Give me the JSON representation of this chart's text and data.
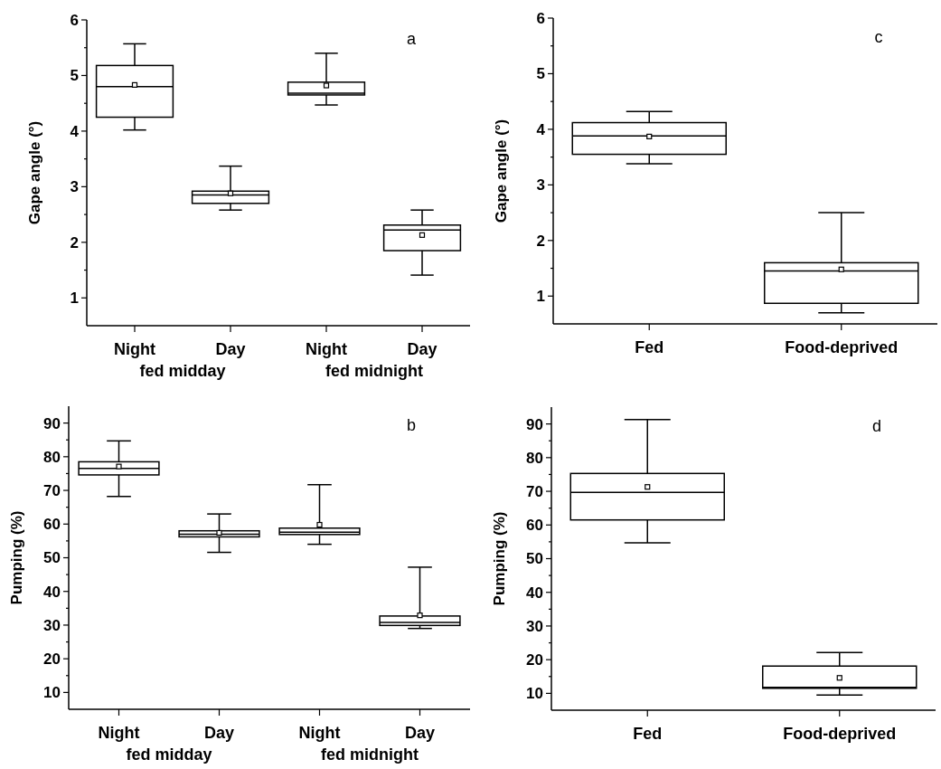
{
  "chart_data": [
    {
      "type": "box",
      "ylabel": "Gape angle (°)",
      "annotations": [
        "a",
        "fed midday",
        "fed midnight"
      ],
      "categories": [
        "Night",
        "Day",
        "Night",
        "Day"
      ],
      "ylim": [
        0.5,
        6
      ],
      "yticks": [
        1,
        {
          "value": 1.5,
          "label": null
        },
        2,
        {
          "value": 2.5,
          "label": null
        },
        3,
        {
          "value": 3.5,
          "label": null
        },
        4,
        {
          "value": 4.5,
          "label": null
        },
        5,
        {
          "value": 5.5,
          "label": null
        },
        6
      ],
      "boxes": [
        {
          "low": 4.02,
          "q1": 4.25,
          "median": 4.8,
          "q3": 5.18,
          "high": 5.57,
          "mean": 4.83
        },
        {
          "low": 2.58,
          "q1": 2.7,
          "median": 2.85,
          "q3": 2.92,
          "high": 3.37,
          "mean": 2.88
        },
        {
          "low": 4.47,
          "q1": 4.65,
          "median": 4.68,
          "q3": 4.88,
          "high": 5.4,
          "mean": 4.82
        },
        {
          "low": 1.41,
          "q1": 1.85,
          "median": 2.22,
          "q3": 2.31,
          "high": 2.58,
          "mean": 2.13
        }
      ]
    },
    {
      "type": "box",
      "ylabel": "Gape angle (°)",
      "annotations": [
        "c"
      ],
      "categories": [
        "Fed",
        "Food-deprived"
      ],
      "ylim": [
        0.5,
        6
      ],
      "yticks": [
        1,
        {
          "value": 1.5,
          "label": null
        },
        2,
        {
          "value": 2.5,
          "label": null
        },
        3,
        {
          "value": 3.5,
          "label": null
        },
        4,
        {
          "value": 4.5,
          "label": null
        },
        5,
        {
          "value": 5.5,
          "label": null
        },
        6
      ],
      "boxes": [
        {
          "low": 3.38,
          "q1": 3.55,
          "median": 3.88,
          "q3": 4.12,
          "high": 4.32,
          "mean": 3.87
        },
        {
          "low": 0.7,
          "q1": 0.87,
          "median": 1.45,
          "q3": 1.6,
          "high": 2.5,
          "mean": 1.48
        }
      ]
    },
    {
      "type": "box",
      "ylabel": "Pumping (%)",
      "annotations": [
        "b",
        "fed midday",
        "fed midnight"
      ],
      "categories": [
        "Night",
        "Day",
        "Night",
        "Day"
      ],
      "ylim": [
        5,
        95
      ],
      "yticks": [
        10,
        {
          "value": 15,
          "label": null
        },
        20,
        {
          "value": 25,
          "label": null
        },
        30,
        {
          "value": 35,
          "label": null
        },
        40,
        {
          "value": 45,
          "label": null
        },
        50,
        {
          "value": 55,
          "label": null
        },
        60,
        {
          "value": 65,
          "label": null
        },
        70,
        {
          "value": 75,
          "label": null
        },
        80,
        {
          "value": 85,
          "label": null
        },
        90
      ],
      "boxes": [
        {
          "low": 68.2,
          "q1": 74.6,
          "median": 76.5,
          "q3": 78.5,
          "high": 84.7,
          "mean": 77.1
        },
        {
          "low": 51.6,
          "q1": 56.2,
          "median": 57,
          "q3": 58,
          "high": 63,
          "mean": 57.4
        },
        {
          "low": 54,
          "q1": 56.9,
          "median": 57.6,
          "q3": 58.8,
          "high": 71.7,
          "mean": 59.8
        },
        {
          "low": 29,
          "q1": 29.9,
          "median": 30.8,
          "q3": 32.7,
          "high": 47.2,
          "mean": 32.9
        }
      ]
    },
    {
      "type": "box",
      "ylabel": "Pumping (%)",
      "annotations": [
        "d"
      ],
      "categories": [
        "Fed",
        "Food-deprived"
      ],
      "ylim": [
        5,
        95
      ],
      "yticks": [
        10,
        {
          "value": 15,
          "label": null
        },
        20,
        {
          "value": 25,
          "label": null
        },
        30,
        {
          "value": 35,
          "label": null
        },
        40,
        {
          "value": 45,
          "label": null
        },
        50,
        {
          "value": 55,
          "label": null
        },
        60,
        {
          "value": 65,
          "label": null
        },
        70,
        {
          "value": 75,
          "label": null
        },
        80,
        {
          "value": 85,
          "label": null
        },
        90
      ],
      "boxes": [
        {
          "low": 54.7,
          "q1": 61.5,
          "median": 69.7,
          "q3": 75.3,
          "high": 91.3,
          "mean": 71.3
        },
        {
          "low": 9.5,
          "q1": 11.5,
          "median": 11.8,
          "q3": 18.1,
          "high": 22.1,
          "mean": 14.6
        }
      ]
    }
  ]
}
